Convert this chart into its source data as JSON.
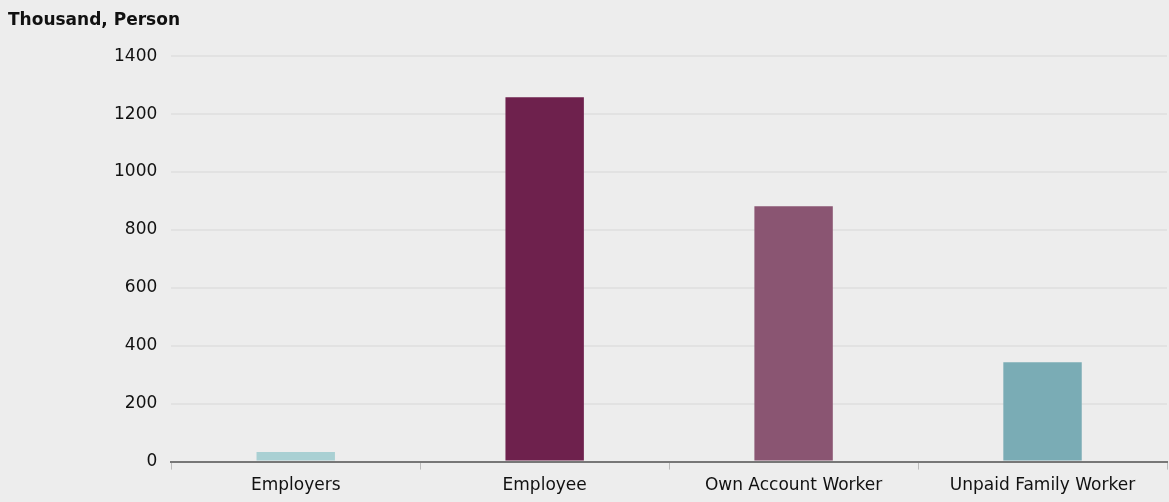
{
  "chart_data": {
    "type": "bar",
    "ylabel": "Thousand, Person",
    "categories": [
      "Employers",
      "Employee",
      "Own Account Worker",
      "Unpaid Family Worker"
    ],
    "values": [
      33,
      1258,
      882,
      343
    ],
    "colors": [
      "#a9d0d3",
      "#6e214d",
      "#8a5572",
      "#7aacb5"
    ],
    "ylim": [
      0,
      1400
    ],
    "yticks": [
      0,
      200,
      400,
      600,
      800,
      1000,
      1200,
      1400
    ],
    "grid": "y",
    "legend": false
  }
}
